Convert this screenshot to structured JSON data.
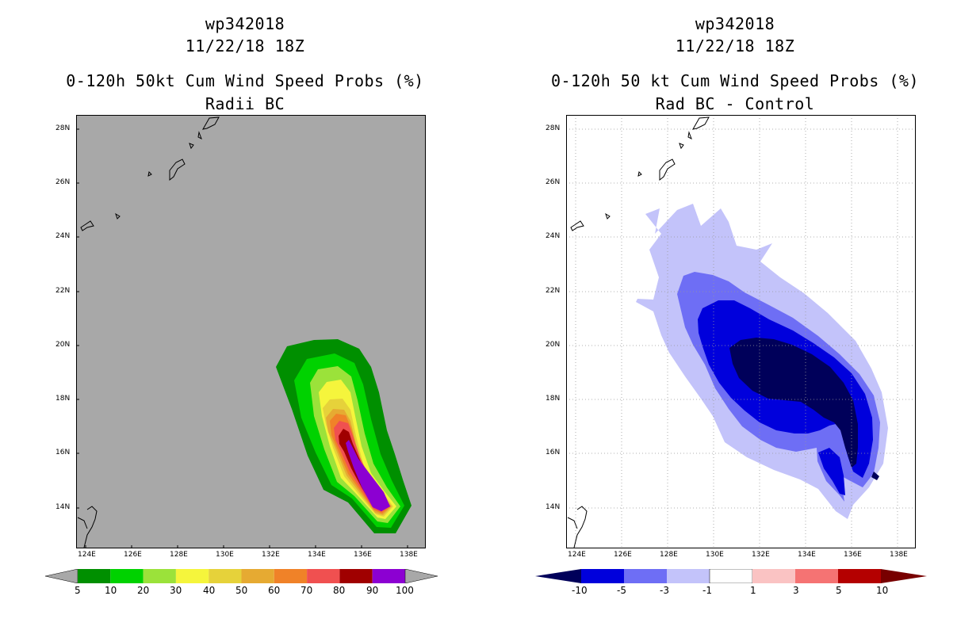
{
  "left_panel": {
    "title_lines": [
      "wp342018",
      "11/22/18 18Z",
      "0-120h 50kt Cum Wind Speed Probs (%)",
      "Radii BC"
    ],
    "lat_labels": [
      "28N",
      "26N",
      "24N",
      "22N",
      "20N",
      "18N",
      "16N",
      "14N"
    ],
    "lon_labels": [
      "124E",
      "126E",
      "128E",
      "130E",
      "132E",
      "134E",
      "136E",
      "138E"
    ],
    "colorbar": {
      "labels": [
        "5",
        "10",
        "20",
        "30",
        "40",
        "50",
        "60",
        "70",
        "80",
        "90",
        "100"
      ],
      "colors": [
        "#008f00",
        "#00d200",
        "#9be23a",
        "#f5f53c",
        "#e6d23a",
        "#e6aa32",
        "#f08228",
        "#f05050",
        "#a00000",
        "#8c00d2"
      ],
      "arrow_color": "#a8a8a8"
    },
    "background_color": "#a8a8a8"
  },
  "right_panel": {
    "title_lines": [
      "wp342018",
      "11/22/18 18Z",
      "0-120h 50 kt Cum Wind Speed Probs (%)",
      "Rad BC - Control"
    ],
    "lat_labels": [
      "28N",
      "26N",
      "24N",
      "22N",
      "20N",
      "18N",
      "16N",
      "14N"
    ],
    "lon_labels": [
      "124E",
      "126E",
      "128E",
      "130E",
      "132E",
      "134E",
      "136E",
      "138E"
    ],
    "colorbar": {
      "labels": [
        "-10",
        "-5",
        "-3",
        "-1",
        "1",
        "3",
        "5",
        "10"
      ],
      "colors": [
        "#0000dc",
        "#6e6ef5",
        "#c3c3fa",
        "#ffffff",
        "#fac3c3",
        "#f57373",
        "#b40000"
      ],
      "arrow_low": "#00005a",
      "arrow_high": "#780000"
    },
    "background_color": "#ffffff"
  }
}
